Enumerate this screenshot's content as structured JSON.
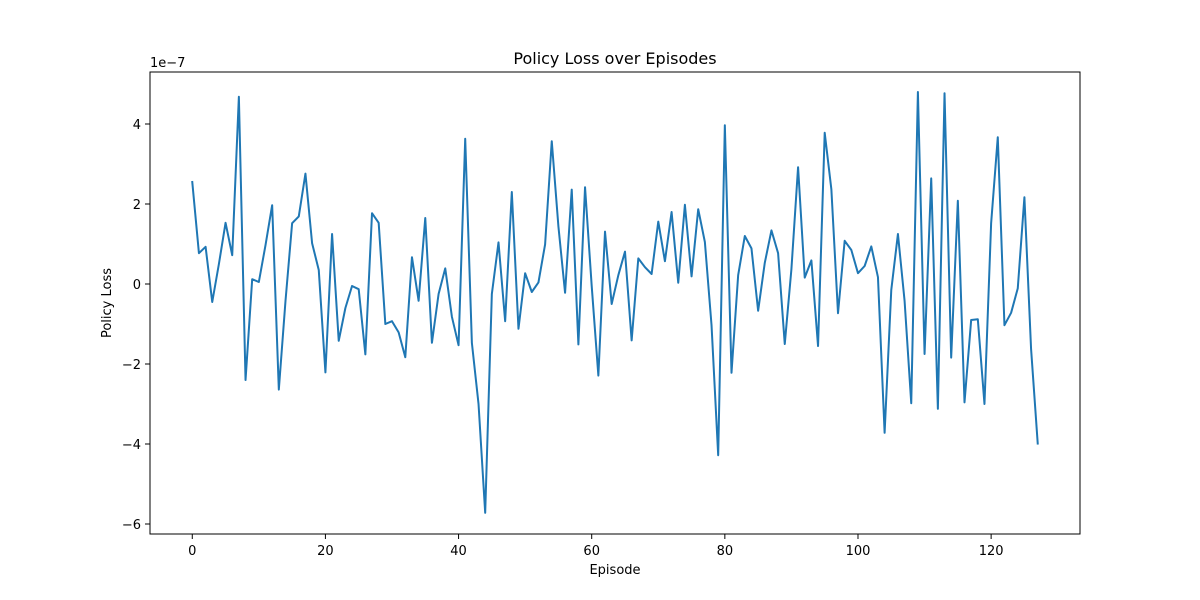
{
  "chart_data": {
    "type": "line",
    "title": "Policy Loss over Episodes",
    "xlabel": "Episode",
    "ylabel": "Policy Loss",
    "y_scale_label": "1e−7",
    "xlim": [
      -6.35,
      133.35
    ],
    "ylim": [
      -6.25,
      5.3
    ],
    "x_ticks": [
      0,
      20,
      40,
      60,
      80,
      100,
      120
    ],
    "x_tick_labels": [
      "0",
      "20",
      "40",
      "60",
      "80",
      "100",
      "120"
    ],
    "y_ticks": [
      -6,
      -4,
      -2,
      0,
      2,
      4
    ],
    "y_tick_labels": [
      "−6",
      "−4",
      "−2",
      "0",
      "2",
      "4"
    ],
    "grid": false,
    "legend": "none",
    "series": [
      {
        "color": "#1f77b4",
        "x_start": 0,
        "x_step": 1,
        "values": [
          2.55,
          0.77,
          0.93,
          -0.45,
          0.5,
          1.53,
          0.72,
          4.68,
          -2.4,
          0.12,
          0.05,
          0.97,
          1.97,
          -2.64,
          -0.43,
          1.52,
          1.69,
          2.76,
          1.02,
          0.35,
          -2.21,
          1.25,
          -1.42,
          -0.6,
          -0.05,
          -0.13,
          -1.76,
          1.77,
          1.53,
          -1.0,
          -0.93,
          -1.21,
          -1.83,
          0.67,
          -0.42,
          1.65,
          -1.47,
          -0.25,
          0.39,
          -0.82,
          -1.53,
          3.63,
          -1.47,
          -3.0,
          -5.72,
          -0.25,
          1.04,
          -0.93,
          2.3,
          -1.12,
          0.27,
          -0.2,
          0.04,
          0.99,
          3.57,
          1.44,
          -0.22,
          2.36,
          -1.51,
          2.42,
          -0.05,
          -2.29,
          1.31,
          -0.5,
          0.22,
          0.81,
          -1.41,
          0.64,
          0.42,
          0.25,
          1.56,
          0.57,
          1.8,
          0.03,
          1.98,
          0.19,
          1.87,
          1.05,
          -1.03,
          -4.28,
          3.97,
          -2.22,
          0.22,
          1.2,
          0.89,
          -0.67,
          0.53,
          1.34,
          0.77,
          -1.5,
          0.37,
          2.92,
          0.16,
          0.59,
          -1.55,
          3.78,
          2.37,
          -0.73,
          1.08,
          0.85,
          0.27,
          0.45,
          0.94,
          0.17,
          -3.72,
          -0.15,
          1.25,
          -0.42,
          -2.98,
          4.8,
          -1.75,
          2.64,
          -3.12,
          4.77,
          -1.84,
          2.08,
          -2.96,
          -0.9,
          -0.88,
          -3.0,
          1.52,
          3.67,
          -1.03,
          -0.72,
          -0.11,
          2.17,
          -1.62,
          -3.99
        ]
      }
    ]
  }
}
